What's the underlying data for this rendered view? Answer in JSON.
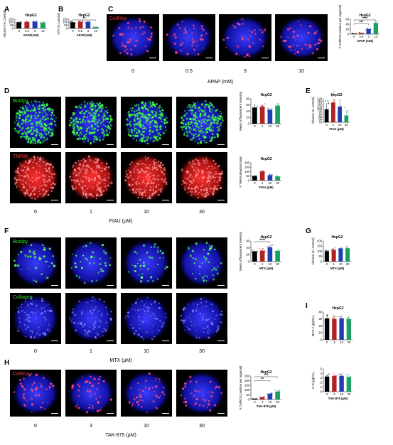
{
  "panel_letters": {
    "A": "A",
    "B": "B",
    "C": "C",
    "D": "D",
    "E": "E",
    "F": "F",
    "G": "G",
    "H": "H",
    "I": "I"
  },
  "stain_labels": {
    "C": "CellRox",
    "D_top": "Bodipy",
    "D_bottom": "TMRM",
    "F_top": "Bodipy",
    "F_bottom": "Collagen",
    "H": "CellRox"
  },
  "stain_colors": {
    "CellRox": "#e83a3a",
    "Bodipy": "#33dd33",
    "TMRM": "#e83a3a",
    "Collagen": "#33dd33"
  },
  "doses": {
    "C": [
      "0",
      "0.5",
      "3",
      "10"
    ],
    "D": [
      "0",
      "1",
      "10",
      "30"
    ],
    "F": [
      "0",
      "1",
      "10",
      "30"
    ],
    "H": [
      "0",
      "3",
      "10",
      "30"
    ]
  },
  "axis_titles": {
    "C": "APAP (mM)",
    "D": "FIAU (μM)",
    "F": "MTX (μM)",
    "H": "TAK-875 (μM)"
  },
  "significance": {
    "B": "**",
    "C_top": "****",
    "C_mid": "***",
    "F": "****",
    "H_top": "***",
    "H_mid": "**"
  },
  "colors": {
    "c0": "#000000",
    "c1": "#b22222",
    "c2": "#1f3fb0",
    "c3": "#1aa060"
  },
  "chart_data": [
    {
      "id": "A",
      "type": "bar",
      "title": "HepG2",
      "ylabel": "Albumin (% Control)",
      "xlabel": "APAP(mM)",
      "categories": [
        "0",
        "0.5",
        "3",
        "10"
      ],
      "values": [
        100,
        105,
        110,
        95
      ],
      "yticks": [
        "0",
        "50",
        "100",
        "150"
      ],
      "ylim": [
        0,
        150
      ]
    },
    {
      "id": "B",
      "type": "bar",
      "title": "HepG2",
      "ylabel": "ATP (% Control)",
      "xlabel": "APAP(mM)",
      "categories": [
        "0",
        "0.5",
        "3",
        "10"
      ],
      "values": [
        100,
        110,
        108,
        20
      ],
      "yticks": [
        "0",
        "50",
        "100",
        "150"
      ],
      "ylim": [
        0,
        150
      ]
    },
    {
      "id": "C",
      "type": "bar",
      "title": "HepG2",
      "ylabel": "# CellROX positive per organoid",
      "xlabel": "APAP (mM)",
      "categories": [
        "0",
        "0.5",
        "3",
        "10"
      ],
      "values": [
        2,
        5,
        20,
        45
      ],
      "yticks": [
        "0",
        "20",
        "40",
        "60"
      ],
      "ylim": [
        0,
        60
      ]
    },
    {
      "id": "D1",
      "type": "bar",
      "title": "HepG2",
      "ylabel": "Mean of fluorescent intensity",
      "xlabel": "",
      "categories": [
        "0",
        "1",
        "10",
        "30"
      ],
      "values": [
        52,
        55,
        45,
        58
      ],
      "yticks": [
        "0",
        "20",
        "40",
        "60",
        "80"
      ],
      "ylim": [
        0,
        80
      ]
    },
    {
      "id": "D2",
      "type": "bar",
      "title": "HepG2",
      "ylabel": "# TMRM depolarization",
      "xlabel": "FIAU  (μM)",
      "categories": [
        "0",
        "1",
        "10",
        "30"
      ],
      "values": [
        50,
        105,
        60,
        45
      ],
      "yticks": [
        "0",
        "50",
        "100",
        "150",
        "200"
      ],
      "ylim": [
        0,
        200
      ]
    },
    {
      "id": "E",
      "type": "bar",
      "title": "HepG2",
      "ylabel": "Albumin (% Control)",
      "xlabel": "FIAU  (μM)",
      "categories": [
        "0",
        "1",
        "10",
        "30"
      ],
      "values": [
        100,
        113,
        105,
        88
      ],
      "yticks": [
        "75",
        "80",
        "85",
        "90",
        "95",
        "100",
        "105",
        "110",
        "115",
        "120"
      ],
      "ylim": [
        75,
        120
      ]
    },
    {
      "id": "F",
      "type": "bar",
      "title": "HepG2",
      "ylabel": "Mean of fluorescent intensity",
      "xlabel": "MTX  (μM)",
      "categories": [
        "0",
        "1",
        "10",
        "30"
      ],
      "values": [
        30,
        32,
        42,
        31
      ],
      "yticks": [
        "0",
        "20",
        "40",
        "60"
      ],
      "ylim": [
        0,
        60
      ]
    },
    {
      "id": "G",
      "type": "bar",
      "title": "HepG2",
      "ylabel": "Albumin (% Control)",
      "xlabel": "MTX  (μM)",
      "categories": [
        "0",
        "1",
        "10",
        "30"
      ],
      "values": [
        100,
        115,
        128,
        130
      ],
      "yticks": [
        "0",
        "50",
        "100",
        "150",
        "200"
      ],
      "ylim": [
        0,
        200
      ]
    },
    {
      "id": "I1",
      "type": "bar",
      "title": "HepG2",
      "ylabel": "MCP-1 (pg/mL)",
      "xlabel": "",
      "categories": [
        "0",
        "3",
        "10",
        "30"
      ],
      "values": [
        31,
        30,
        31,
        30
      ],
      "yticks": [
        "0",
        "10",
        "20",
        "30",
        "40"
      ],
      "ylim": [
        0,
        40
      ]
    },
    {
      "id": "I2",
      "type": "bar",
      "title": "",
      "ylabel": "IL-8 (pg/mL)",
      "xlabel": "TAK-875 (μM)",
      "categories": [
        "0",
        "3",
        "10",
        "30"
      ],
      "values": [
        3.3,
        3.5,
        3.5,
        3.2
      ],
      "yticks": [
        "0",
        "1",
        "2",
        "3",
        "4",
        "5"
      ],
      "ylim": [
        0,
        5
      ]
    },
    {
      "id": "H",
      "type": "bar",
      "title": "HepG2",
      "ylabel": "# CellROX positive  per organoid",
      "xlabel": "TAK-875  (μM)",
      "categories": [
        "0",
        "3",
        "10",
        "30"
      ],
      "values": [
        8,
        25,
        62,
        85
      ],
      "yticks": [
        "0",
        "50",
        "100",
        "150",
        "200",
        "250"
      ],
      "ylim": [
        0,
        250
      ]
    }
  ]
}
